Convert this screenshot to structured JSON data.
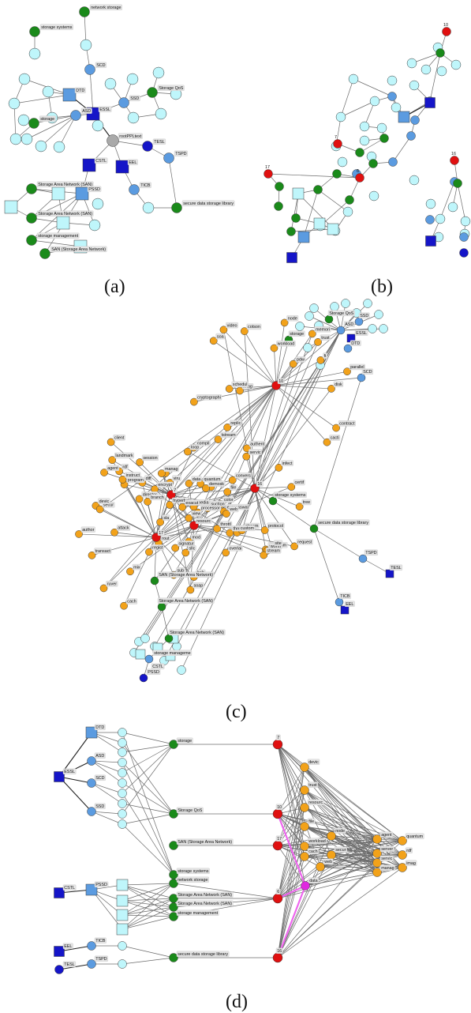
{
  "colors": {
    "cyan": "#bff6fb",
    "blue": "#5b9be0",
    "navy": "#1515c8",
    "green": "#1a8a1a",
    "red": "#e01010",
    "orange": "#f2a21a",
    "gray": "#a9a9a9",
    "magenta": "#e028e0",
    "outline": "#3a3a3a"
  },
  "captions": {
    "a": "(a)",
    "b": "(b)",
    "c": "(c)",
    "d": "(d)"
  },
  "panel_a": {
    "nodes": [
      {
        "id": "a_netstore",
        "label": "network storage",
        "shape": "circle",
        "color": "green"
      },
      {
        "id": "a_storsys",
        "label": "storage systems",
        "shape": "circle",
        "color": "green"
      },
      {
        "id": "a_scd",
        "label": "SCD",
        "shape": "circle",
        "color": "blue"
      },
      {
        "id": "a_dtd",
        "label": "DTD",
        "shape": "square",
        "color": "blue"
      },
      {
        "id": "a_essl",
        "label": "ESSL",
        "shape": "square",
        "color": "navy"
      },
      {
        "id": "a_ssd",
        "label": "SSD",
        "shape": "circle",
        "color": "blue"
      },
      {
        "id": "a_sqos",
        "label": "Storage QoS",
        "shape": "circle",
        "color": "green"
      },
      {
        "id": "a_asd",
        "label": "ASD",
        "shape": "circle",
        "color": "blue"
      },
      {
        "id": "a_storage",
        "label": "storage",
        "shape": "circle",
        "color": "green"
      },
      {
        "id": "a_root",
        "label": "rootPPLtext",
        "shape": "circle",
        "color": "gray"
      },
      {
        "id": "a_tesl",
        "label": "TESL",
        "shape": "circle",
        "color": "navy"
      },
      {
        "id": "a_tspd",
        "label": "TSPD",
        "shape": "circle",
        "color": "blue"
      },
      {
        "id": "a_cstl",
        "label": "CSTL",
        "shape": "square",
        "color": "navy"
      },
      {
        "id": "a_eel",
        "label": "EEL",
        "shape": "square",
        "color": "navy"
      },
      {
        "id": "a_ticb",
        "label": "TICB",
        "shape": "circle",
        "color": "blue"
      },
      {
        "id": "a_sdsl",
        "label": "secure data storage library",
        "shape": "circle",
        "color": "green"
      },
      {
        "id": "a_san1",
        "label": "Storage Area Network (SAN)",
        "shape": "circle",
        "color": "green"
      },
      {
        "id": "a_pssd",
        "label": "PSSD",
        "shape": "square",
        "color": "blue"
      },
      {
        "id": "a_san2",
        "label": "Storage Area Network (SAN)",
        "shape": "circle",
        "color": "green"
      },
      {
        "id": "a_smgmt",
        "label": "storage management",
        "shape": "circle",
        "color": "green"
      },
      {
        "id": "a_san3",
        "label": "SAN (Storage Area Network)",
        "shape": "circle",
        "color": "green"
      }
    ]
  },
  "panel_b": {
    "labels": [
      "10",
      "7",
      "6",
      "17",
      "16"
    ]
  },
  "panel_c": {
    "hub_labels": [
      "10",
      "7",
      "16",
      "17",
      "resourc"
    ],
    "term_labels": [
      "video",
      "sla",
      "algorithm",
      "sub",
      "qo",
      "soa",
      "convers",
      "custom",
      "transact",
      "soap",
      "contract",
      "color",
      "media",
      "devic",
      "data",
      "pdw",
      "expresswal",
      "infect",
      "viru",
      "file",
      "node",
      "landmark",
      "overlai",
      "koi",
      "encrypt",
      "workload",
      "mod",
      "protocol",
      "author",
      "rout",
      "cotson",
      "quantum",
      "servic",
      "ruver",
      "signatur",
      "cryptographi",
      "diff",
      "tree",
      "throttl",
      "manag",
      "imag",
      "rdf",
      "certif",
      "demosk",
      "hyperbol",
      "trust",
      "agent",
      "exacut",
      "secur",
      "web",
      "replic",
      "program",
      "stream",
      "branch",
      "thread",
      "parallel",
      "tstream",
      "suction",
      "cach",
      "worm",
      "disk",
      "client",
      "authent",
      "bob",
      "sllc",
      "cacti",
      "view",
      "loop",
      "instruct",
      "regist",
      "fi",
      "session",
      "request",
      "attack",
      "mix",
      "memori",
      "compil",
      "site",
      "director",
      "stream",
      "schedul",
      "processor"
    ],
    "named_labels": [
      "ASD",
      "Storage QoS",
      "SSD",
      "storage",
      "ESSL",
      "DTD",
      "SCD",
      "storage systems",
      "secure data storage library",
      "TSPD",
      "TESL",
      "TICB",
      "EEL",
      "SAN (Storage Area Network)",
      "Storage Area Network (SAN)",
      "Storage Area Network (SAN)",
      "storage manageme",
      "PSSD",
      "CSTL"
    ]
  },
  "panel_d": {
    "col1": [
      {
        "label": "ESSL",
        "color": "navy"
      },
      {
        "label": "CSTL",
        "color": "navy"
      },
      {
        "label": "EEL",
        "color": "navy"
      },
      {
        "label": "TESL",
        "color": "navy"
      }
    ],
    "col2": [
      {
        "label": "DTD"
      },
      {
        "label": "ASD"
      },
      {
        "label": "SCD"
      },
      {
        "label": "SSD"
      },
      {
        "label": "PSSD"
      },
      {
        "label": "TICB"
      },
      {
        "label": "TSPD"
      }
    ],
    "col4": [
      {
        "label": "storage"
      },
      {
        "label": "Storage QoS"
      },
      {
        "label": "SAN (Storage Area Network)"
      },
      {
        "label": "storage systems"
      },
      {
        "label": "network storage"
      },
      {
        "label": "Storage Area Network (SAN)"
      },
      {
        "label": "Storage Area Network (SAN)"
      },
      {
        "label": "storage management"
      },
      {
        "label": "secure data storage library"
      }
    ],
    "col5": [
      {
        "label": "7"
      },
      {
        "label": "10"
      },
      {
        "label": "17"
      },
      {
        "label": "6"
      },
      {
        "label": "16"
      }
    ],
    "col6": [
      {
        "label": "devic"
      },
      {
        "label": "trust"
      },
      {
        "label": "resourc"
      },
      {
        "label": "file"
      },
      {
        "label": "workload"
      },
      {
        "label": "cach"
      },
      {
        "label": "node"
      },
      {
        "label": "secur"
      },
      {
        "label": "web"
      },
      {
        "label": "data"
      }
    ],
    "col7": [
      {
        "label": "agent"
      },
      {
        "label": "server"
      },
      {
        "label": "servic"
      },
      {
        "label": "manag"
      },
      {
        "label": "quantum"
      },
      {
        "label": "rdf"
      },
      {
        "label": "imag"
      }
    ]
  }
}
